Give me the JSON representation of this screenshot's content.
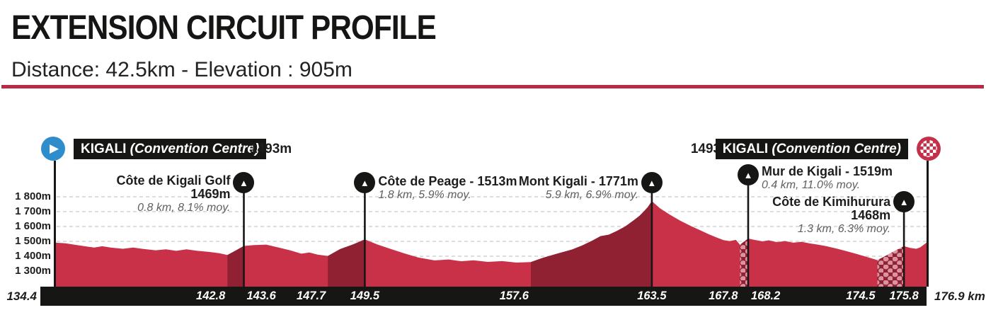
{
  "header": {
    "title": "EXTENSION CIRCUIT PROFILE",
    "subtitle": "Distance: 42.5km - Elevation : 905m"
  },
  "chart_data": {
    "type": "area",
    "x_range": [
      134.4,
      176.9
    ],
    "x_unit": "km",
    "y_gridlines_m": [
      1800,
      1700,
      1600,
      1500,
      1400,
      1300
    ],
    "y_axis_labels": [
      "1 800m",
      "1 700m",
      "1 600m",
      "1 500m",
      "1 400m",
      "1 300m"
    ],
    "x_axis_ticks": [
      {
        "label": "134.4",
        "km": 134.4,
        "align": "outside-left"
      },
      {
        "label": "142.8",
        "km": 142.8,
        "align": "right"
      },
      {
        "label": "143.6",
        "km": 143.6,
        "align": "left"
      },
      {
        "label": "147.7",
        "km": 147.7,
        "align": "right"
      },
      {
        "label": "149.5",
        "km": 149.5,
        "align": "center"
      },
      {
        "label": "157.6",
        "km": 157.6,
        "align": "right"
      },
      {
        "label": "163.5",
        "km": 163.5,
        "align": "center"
      },
      {
        "label": "167.8",
        "km": 167.8,
        "align": "right"
      },
      {
        "label": "168.2",
        "km": 168.2,
        "align": "left"
      },
      {
        "label": "174.5",
        "km": 174.5,
        "align": "right"
      },
      {
        "label": "175.8",
        "km": 175.8,
        "align": "center"
      },
      {
        "label": "176.9 km",
        "km": 176.9,
        "align": "outside-right"
      }
    ],
    "start": {
      "name": "KIGALI",
      "name_suffix": "(Convention Centre)",
      "elevation_label": "1493m",
      "km": 134.4
    },
    "finish": {
      "name": "KIGALI",
      "name_suffix": "(Convention Centre)",
      "elevation_label": "1493m",
      "km": 176.9
    },
    "climbs": [
      {
        "name": "Côte de Kigali Golf",
        "altitude_label": "1469m",
        "detail": "0.8 km, 8.1% moy.",
        "from_km": 142.8,
        "summit_km": 143.6,
        "summit_elevation_m": 1469,
        "label_side": "left",
        "cobbled": false
      },
      {
        "name": "Côte de Peage - 1513m",
        "altitude_label": "",
        "detail": "1.8 km, 5.9% moy.",
        "from_km": 147.7,
        "summit_km": 149.5,
        "summit_elevation_m": 1513,
        "label_side": "right",
        "cobbled": false
      },
      {
        "name": "Mont Kigali - 1771m",
        "altitude_label": "",
        "detail": "5.9 km, 6.9% moy.",
        "from_km": 157.6,
        "summit_km": 163.5,
        "summit_elevation_m": 1771,
        "label_side": "left",
        "cobbled": false
      },
      {
        "name": "Mur de Kigali - 1519m",
        "altitude_label": "",
        "detail": "0.4 km, 11.0% moy.",
        "from_km": 167.8,
        "summit_km": 168.2,
        "summit_elevation_m": 1519,
        "label_side": "right",
        "cobbled": true
      },
      {
        "name": "Côte de Kimihurura",
        "altitude_label": "1468m",
        "detail": "1.3 km, 6.3% moy.",
        "from_km": 174.5,
        "summit_km": 175.8,
        "summit_elevation_m": 1468,
        "label_side": "left",
        "cobbled": true
      }
    ],
    "profile_points": [
      [
        134.4,
        1492
      ],
      [
        134.9,
        1487
      ],
      [
        135.4,
        1476
      ],
      [
        135.9,
        1466
      ],
      [
        136.3,
        1458
      ],
      [
        136.7,
        1467
      ],
      [
        137.1,
        1458
      ],
      [
        137.7,
        1450
      ],
      [
        138.2,
        1458
      ],
      [
        138.7,
        1449
      ],
      [
        139.3,
        1440
      ],
      [
        139.8,
        1446
      ],
      [
        140.3,
        1436
      ],
      [
        140.8,
        1446
      ],
      [
        141.3,
        1437
      ],
      [
        141.9,
        1429
      ],
      [
        142.4,
        1420
      ],
      [
        142.8,
        1408
      ],
      [
        143.2,
        1438
      ],
      [
        143.6,
        1469
      ],
      [
        144.1,
        1475
      ],
      [
        144.7,
        1478
      ],
      [
        145.3,
        1458
      ],
      [
        145.9,
        1438
      ],
      [
        146.4,
        1417
      ],
      [
        146.8,
        1425
      ],
      [
        147.2,
        1411
      ],
      [
        147.7,
        1402
      ],
      [
        148.3,
        1448
      ],
      [
        148.9,
        1478
      ],
      [
        149.5,
        1513
      ],
      [
        150.1,
        1480
      ],
      [
        150.7,
        1452
      ],
      [
        151.4,
        1420
      ],
      [
        152.1,
        1392
      ],
      [
        152.9,
        1372
      ],
      [
        153.6,
        1378
      ],
      [
        154.2,
        1366
      ],
      [
        154.8,
        1373
      ],
      [
        155.5,
        1362
      ],
      [
        156.2,
        1367
      ],
      [
        156.9,
        1357
      ],
      [
        157.6,
        1361
      ],
      [
        158.2,
        1390
      ],
      [
        158.9,
        1418
      ],
      [
        159.6,
        1445
      ],
      [
        160.1,
        1472
      ],
      [
        160.6,
        1505
      ],
      [
        161.0,
        1535
      ],
      [
        161.4,
        1545
      ],
      [
        161.8,
        1570
      ],
      [
        162.2,
        1600
      ],
      [
        162.6,
        1640
      ],
      [
        162.9,
        1672
      ],
      [
        163.1,
        1700
      ],
      [
        163.3,
        1730
      ],
      [
        163.5,
        1771
      ],
      [
        163.9,
        1722
      ],
      [
        164.4,
        1678
      ],
      [
        164.9,
        1638
      ],
      [
        165.4,
        1604
      ],
      [
        165.9,
        1572
      ],
      [
        166.3,
        1546
      ],
      [
        166.7,
        1524
      ],
      [
        167.0,
        1508
      ],
      [
        167.3,
        1502
      ],
      [
        167.6,
        1510
      ],
      [
        167.8,
        1477
      ],
      [
        168.0,
        1498
      ],
      [
        168.2,
        1519
      ],
      [
        168.5,
        1510
      ],
      [
        168.9,
        1500
      ],
      [
        169.2,
        1507
      ],
      [
        169.6,
        1495
      ],
      [
        170.0,
        1502
      ],
      [
        170.4,
        1491
      ],
      [
        170.8,
        1497
      ],
      [
        171.2,
        1486
      ],
      [
        171.6,
        1478
      ],
      [
        172.0,
        1468
      ],
      [
        172.5,
        1452
      ],
      [
        173.0,
        1434
      ],
      [
        173.5,
        1415
      ],
      [
        174.0,
        1395
      ],
      [
        174.5,
        1374
      ],
      [
        174.9,
        1402
      ],
      [
        175.3,
        1432
      ],
      [
        175.8,
        1468
      ],
      [
        176.1,
        1456
      ],
      [
        176.4,
        1450
      ],
      [
        176.6,
        1460
      ],
      [
        176.9,
        1492
      ]
    ],
    "colors": {
      "profile_red": "#c93148",
      "climb_dark": "#8f2133",
      "cobble_dot": "#dc93a0",
      "bar_black": "#161615",
      "start_blue": "#2f8dcc",
      "finish_crimson": "#c3304a",
      "divider_red": "#b92b45",
      "grid_gray": "#cbcbcb",
      "detail_gray": "#606060"
    }
  }
}
